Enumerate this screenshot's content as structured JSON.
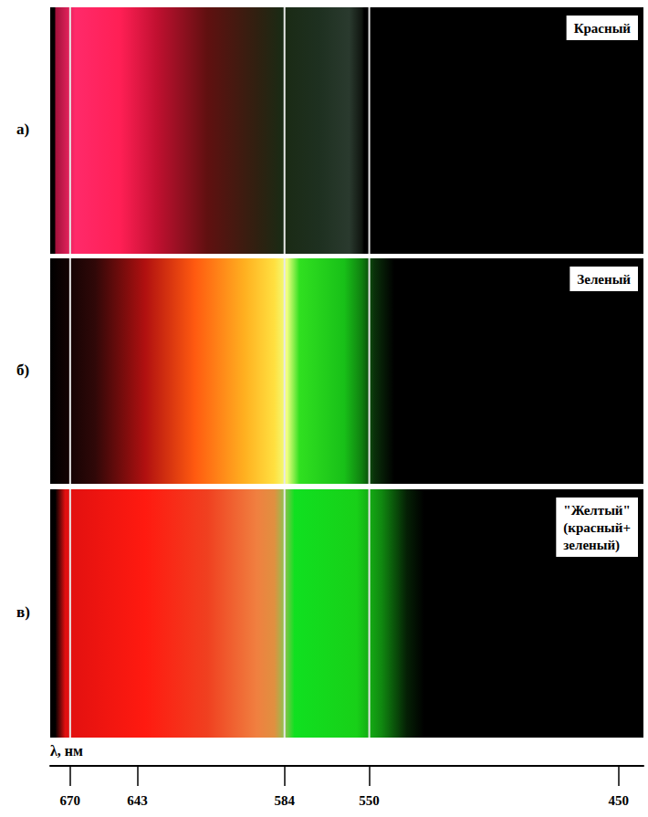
{
  "chart_data": {
    "type": "spectrum",
    "xlabel": "λ, нм",
    "xlim": [
      678,
      440
    ],
    "xticks": [
      670,
      643,
      584,
      550,
      450
    ],
    "reference_lines": [
      670,
      584,
      550
    ],
    "panels": [
      {
        "letter": "а)",
        "title": "Красный",
        "spectrum": [
          {
            "wavelength": 676,
            "color": "#a0103a"
          },
          {
            "wavelength": 668,
            "color": "#ff2a6a"
          },
          {
            "wavelength": 650,
            "color": "#ff1f55"
          },
          {
            "wavelength": 635,
            "color": "#c01030"
          },
          {
            "wavelength": 615,
            "color": "#601010"
          },
          {
            "wavelength": 595,
            "color": "#302010"
          },
          {
            "wavelength": 585,
            "color": "#1a2a14"
          },
          {
            "wavelength": 570,
            "color": "#1e3020"
          },
          {
            "wavelength": 558,
            "color": "#2a3a2e"
          },
          {
            "wavelength": 553,
            "color": "#101510"
          },
          {
            "wavelength": 552,
            "color": "#000000"
          }
        ]
      },
      {
        "letter": "б)",
        "title": "Зеленый",
        "spectrum": [
          {
            "wavelength": 678,
            "color": "#000000"
          },
          {
            "wavelength": 660,
            "color": "#300808"
          },
          {
            "wavelength": 640,
            "color": "#b01010"
          },
          {
            "wavelength": 620,
            "color": "#ff5a10"
          },
          {
            "wavelength": 600,
            "color": "#ffb020"
          },
          {
            "wavelength": 588,
            "color": "#ffe040"
          },
          {
            "wavelength": 583,
            "color": "#f0ff80"
          },
          {
            "wavelength": 578,
            "color": "#30e020"
          },
          {
            "wavelength": 560,
            "color": "#18c018"
          },
          {
            "wavelength": 553,
            "color": "#108010"
          },
          {
            "wavelength": 548,
            "color": "#0a300a"
          },
          {
            "wavelength": 540,
            "color": "#000000"
          }
        ]
      },
      {
        "letter": "в)",
        "title": "\"Желтый\" (красный+ зеленый)",
        "spectrum": [
          {
            "wavelength": 676,
            "color": "#000000"
          },
          {
            "wavelength": 672,
            "color": "#e01010"
          },
          {
            "wavelength": 640,
            "color": "#ff1a10"
          },
          {
            "wavelength": 615,
            "color": "#f04020"
          },
          {
            "wavelength": 595,
            "color": "#f08040"
          },
          {
            "wavelength": 588,
            "color": "#e09040"
          },
          {
            "wavelength": 584,
            "color": "#90c050"
          },
          {
            "wavelength": 580,
            "color": "#10e020"
          },
          {
            "wavelength": 555,
            "color": "#18d018"
          },
          {
            "wavelength": 545,
            "color": "#108810"
          },
          {
            "wavelength": 535,
            "color": "#052005"
          },
          {
            "wavelength": 528,
            "color": "#000000"
          }
        ]
      }
    ]
  }
}
